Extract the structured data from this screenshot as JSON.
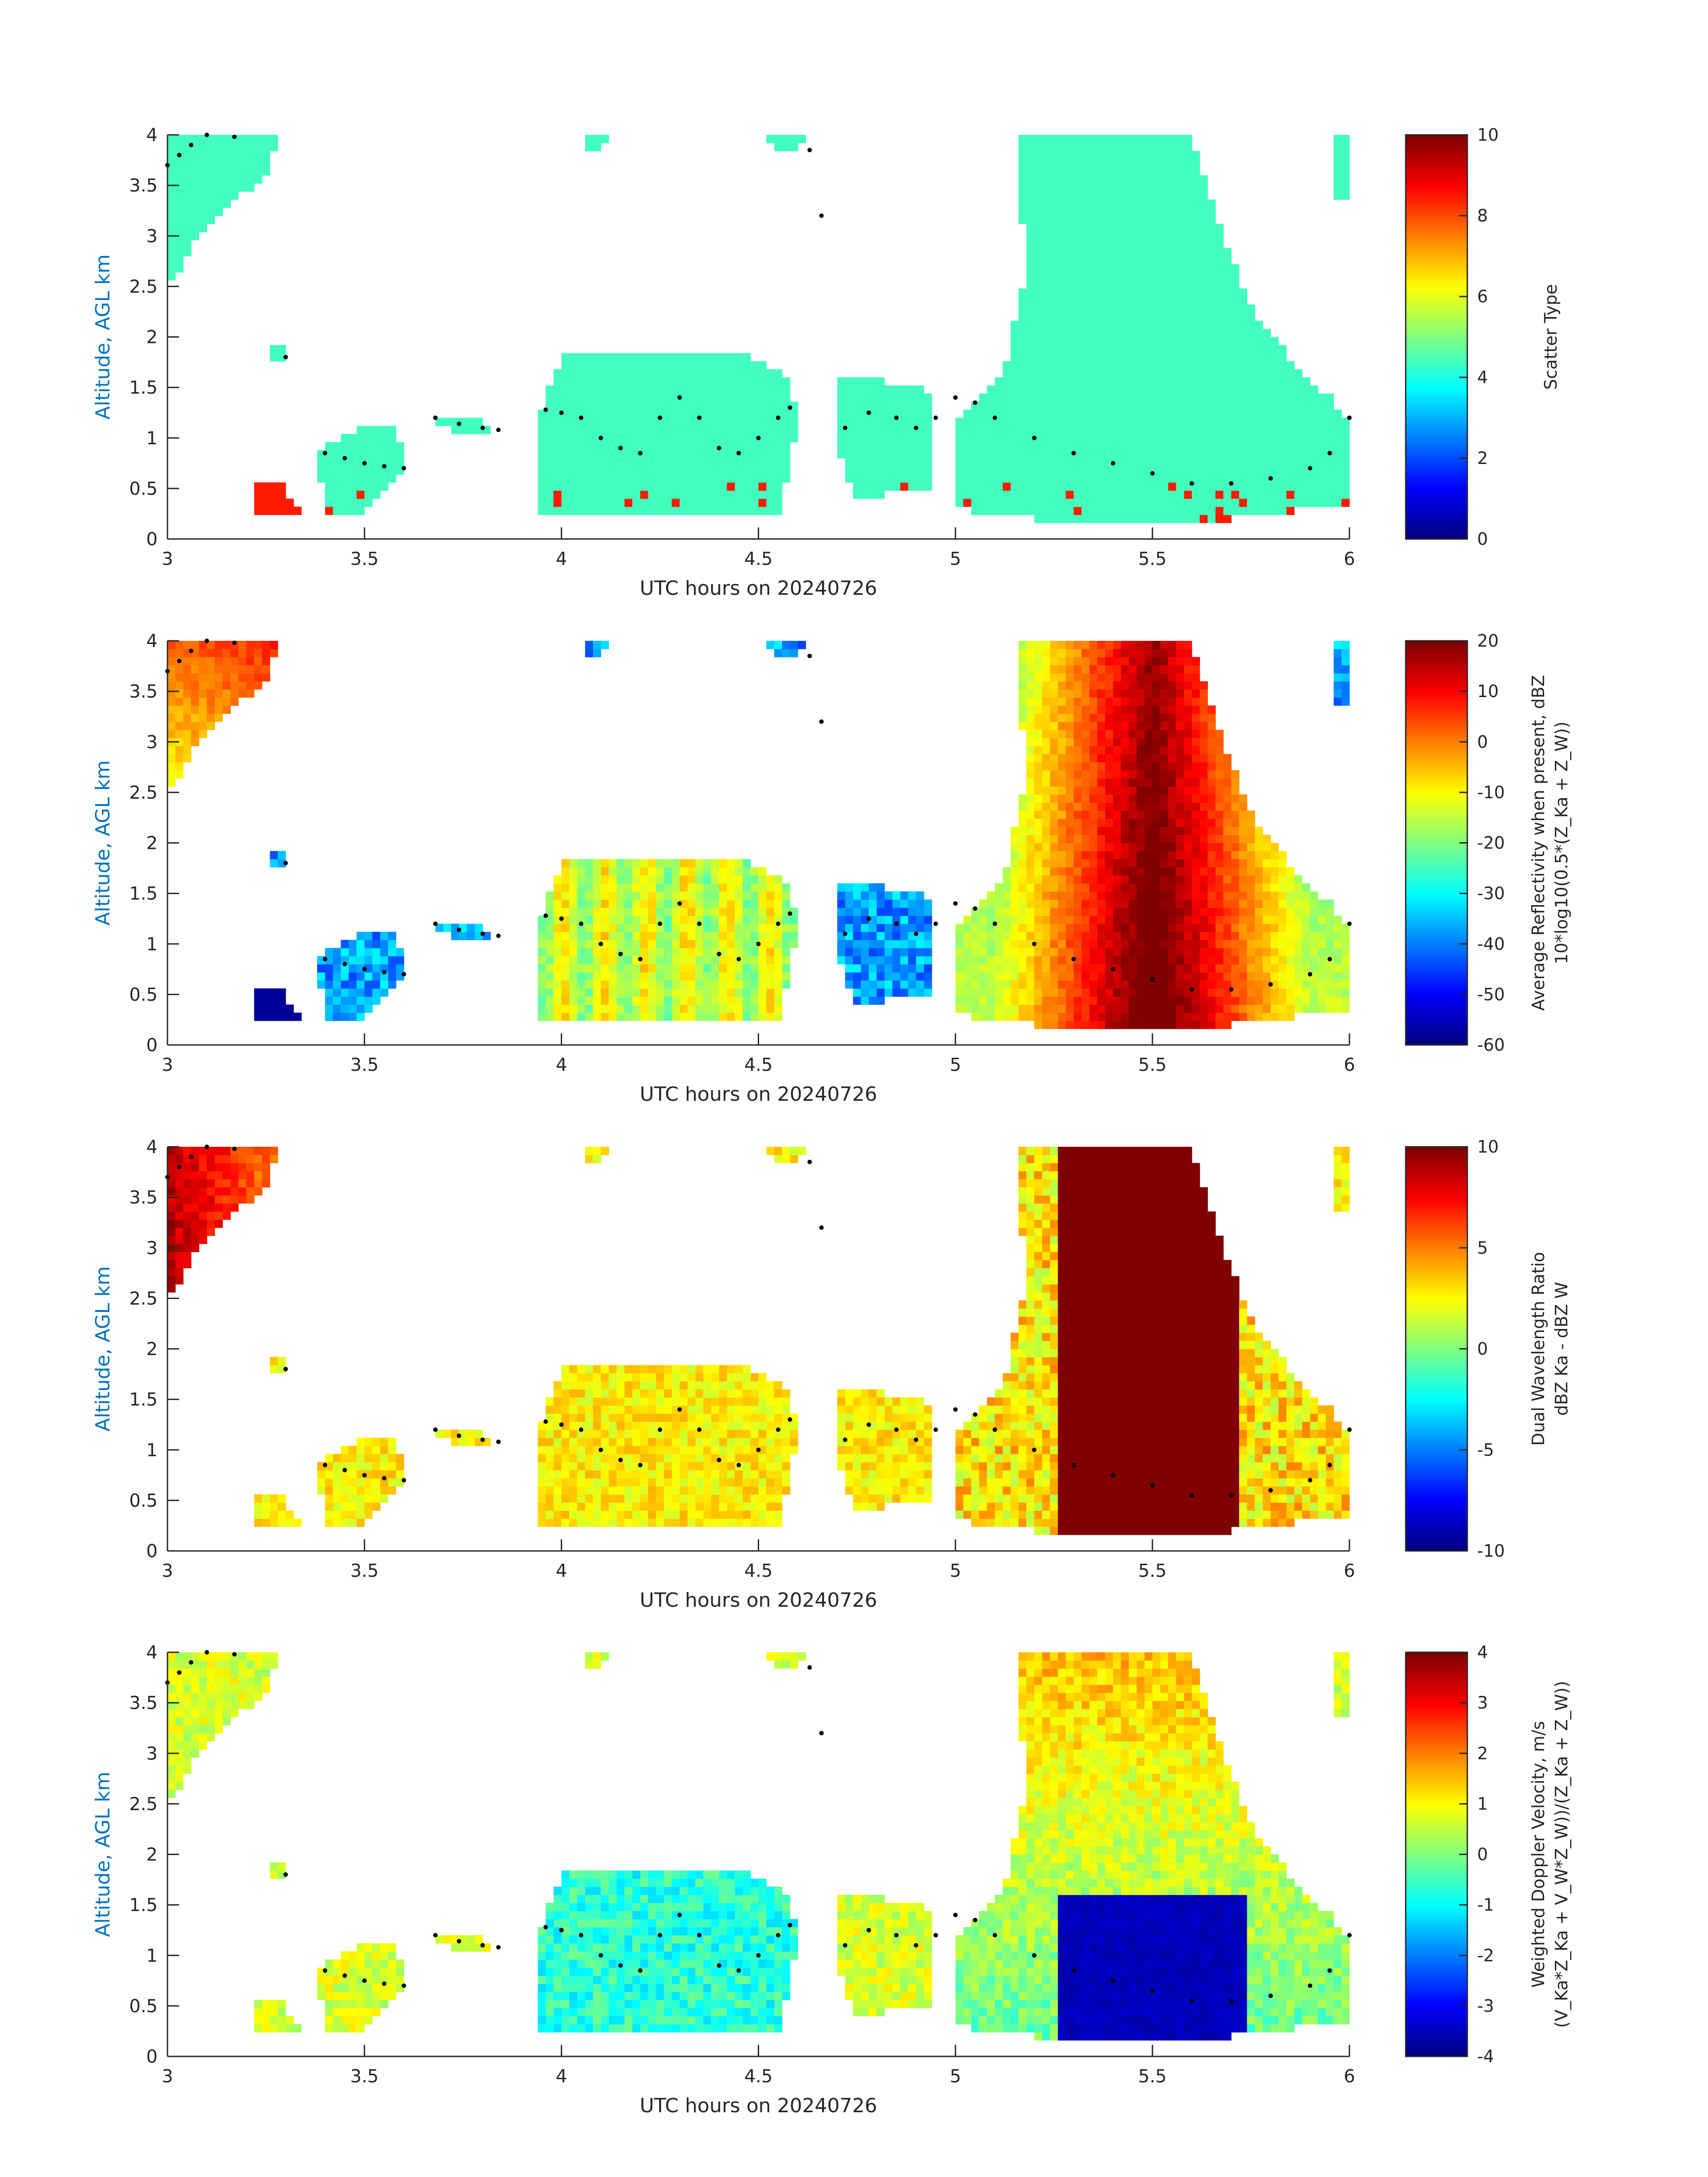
{
  "chart_data": [
    {
      "type": "heatmap",
      "xlabel": "UTC hours on 20240726",
      "ylabel": "Altitude, AGL km",
      "xlim": [
        3,
        6
      ],
      "ylim": [
        0,
        4
      ],
      "xticks": [
        "3",
        "3.5",
        "4",
        "4.5",
        "5",
        "5.5",
        "6"
      ],
      "yticks": [
        "0",
        "0.5",
        "1",
        "1.5",
        "2",
        "2.5",
        "3",
        "3.5",
        "4"
      ],
      "colorbar": {
        "label": "Scatter Type",
        "lim": [
          0,
          10
        ],
        "ticks": [
          "0",
          "2",
          "4",
          "6",
          "8",
          "10"
        ]
      },
      "mode": "scatter"
    },
    {
      "type": "heatmap",
      "xlabel": "UTC hours on 20240726",
      "ylabel": "Altitude, AGL km",
      "xlim": [
        3,
        6
      ],
      "ylim": [
        0,
        4
      ],
      "xticks": [
        "3",
        "3.5",
        "4",
        "4.5",
        "5",
        "5.5",
        "6"
      ],
      "yticks": [
        "0",
        "0.5",
        "1",
        "1.5",
        "2",
        "2.5",
        "3",
        "3.5",
        "4"
      ],
      "colorbar": {
        "label": "Average Reflectivity when present, dBZ",
        "label2": "10*log10(0.5*(Z_Ka + Z_W))",
        "lim": [
          -60,
          20
        ],
        "ticks": [
          "-60",
          "-50",
          "-40",
          "-30",
          "-20",
          "-10",
          "0",
          "10",
          "20"
        ]
      },
      "mode": "refl"
    },
    {
      "type": "heatmap",
      "xlabel": "UTC hours on 20240726",
      "ylabel": "Altitude, AGL km",
      "xlim": [
        3,
        6
      ],
      "ylim": [
        0,
        4
      ],
      "xticks": [
        "3",
        "3.5",
        "4",
        "4.5",
        "5",
        "5.5",
        "6"
      ],
      "yticks": [
        "0",
        "0.5",
        "1",
        "1.5",
        "2",
        "2.5",
        "3",
        "3.5",
        "4"
      ],
      "colorbar": {
        "label": "Dual Wavelength Ratio",
        "label2": "dBZ Ka - dBZ W",
        "lim": [
          -10,
          10
        ],
        "ticks": [
          "-10",
          "-5",
          "0",
          "5",
          "10"
        ]
      },
      "mode": "dwr"
    },
    {
      "type": "heatmap",
      "xlabel": "UTC hours on 20240726",
      "ylabel": "Altitude, AGL km",
      "xlim": [
        3,
        6
      ],
      "ylim": [
        0,
        4
      ],
      "xticks": [
        "3",
        "3.5",
        "4",
        "4.5",
        "5",
        "5.5",
        "6"
      ],
      "yticks": [
        "0",
        "0.5",
        "1",
        "1.5",
        "2",
        "2.5",
        "3",
        "3.5",
        "4"
      ],
      "colorbar": {
        "label": "Weighted Doppler Velocity, m/s",
        "label2": "(V_Ka*Z_Ka + V_W*Z_W))/(Z_Ka + Z_W))",
        "lim": [
          -4,
          4
        ],
        "ticks": [
          "-4",
          "-3",
          "-2",
          "-1",
          "0",
          "1",
          "2",
          "3",
          "4"
        ]
      },
      "mode": "vel"
    }
  ],
  "cloud_regions": [
    {
      "name": "early-high-cloud",
      "poly": [
        [
          3.0,
          4.0
        ],
        [
          3.28,
          4.0
        ],
        [
          3.25,
          3.6
        ],
        [
          3.1,
          3.1
        ],
        [
          3.0,
          2.5
        ]
      ]
    },
    {
      "name": "small-cell-3.3",
      "poly": [
        [
          3.26,
          1.95
        ],
        [
          3.31,
          1.95
        ],
        [
          3.31,
          1.78
        ],
        [
          3.26,
          1.78
        ]
      ]
    },
    {
      "name": "cell-3.5",
      "poly": [
        [
          3.38,
          0.9
        ],
        [
          3.5,
          1.1
        ],
        [
          3.58,
          1.15
        ],
        [
          3.6,
          0.7
        ],
        [
          3.5,
          0.25
        ],
        [
          3.4,
          0.25
        ]
      ]
    },
    {
      "name": "cell-3.75",
      "poly": [
        [
          3.67,
          1.22
        ],
        [
          3.78,
          1.2
        ],
        [
          3.84,
          1.05
        ],
        [
          3.72,
          1.05
        ]
      ]
    },
    {
      "name": "low-cell-3.25",
      "poly": [
        [
          3.22,
          0.6
        ],
        [
          3.28,
          0.6
        ],
        [
          3.34,
          0.25
        ],
        [
          3.22,
          0.25
        ]
      ]
    },
    {
      "name": "main-block-4.2",
      "poly": [
        [
          3.95,
          1.3
        ],
        [
          4.0,
          1.8
        ],
        [
          4.45,
          1.85
        ],
        [
          4.58,
          1.6
        ],
        [
          4.6,
          1.1
        ],
        [
          4.55,
          0.25
        ],
        [
          3.95,
          0.25
        ]
      ]
    },
    {
      "name": "top-4.1",
      "poly": [
        [
          4.05,
          4.0
        ],
        [
          4.12,
          4.0
        ],
        [
          4.1,
          3.85
        ],
        [
          4.07,
          3.85
        ]
      ]
    },
    {
      "name": "top-4.6",
      "poly": [
        [
          4.52,
          4.0
        ],
        [
          4.62,
          4.0
        ],
        [
          4.6,
          3.85
        ],
        [
          4.55,
          3.85
        ]
      ]
    },
    {
      "name": "mid-4.8",
      "poly": [
        [
          4.7,
          1.6
        ],
        [
          4.85,
          1.55
        ],
        [
          4.95,
          1.45
        ],
        [
          4.95,
          0.5
        ],
        [
          4.75,
          0.4
        ],
        [
          4.7,
          0.9
        ]
      ]
    },
    {
      "name": "wide-5.4",
      "poly": [
        [
          5.0,
          1.2
        ],
        [
          5.12,
          1.6
        ],
        [
          5.18,
          2.7
        ],
        [
          5.15,
          4.0
        ],
        [
          5.6,
          4.0
        ],
        [
          5.68,
          3.0
        ],
        [
          5.75,
          2.3
        ],
        [
          5.85,
          1.8
        ],
        [
          5.95,
          1.4
        ],
        [
          6.0,
          1.2
        ],
        [
          6.0,
          0.35
        ],
        [
          5.7,
          0.2
        ],
        [
          5.2,
          0.2
        ],
        [
          5.0,
          0.3
        ]
      ]
    },
    {
      "name": "edge-6",
      "poly": [
        [
          5.97,
          4.0
        ],
        [
          6.0,
          4.0
        ],
        [
          6.0,
          3.4
        ],
        [
          5.97,
          3.4
        ]
      ]
    }
  ],
  "dot_trace": [
    [
      3.0,
      3.7
    ],
    [
      3.03,
      3.8
    ],
    [
      3.06,
      3.9
    ],
    [
      3.1,
      4.0
    ],
    [
      3.17,
      3.98
    ],
    [
      3.3,
      1.8
    ],
    [
      3.4,
      0.85
    ],
    [
      3.45,
      0.8
    ],
    [
      3.5,
      0.75
    ],
    [
      3.55,
      0.72
    ],
    [
      3.6,
      0.7
    ],
    [
      3.68,
      1.2
    ],
    [
      3.74,
      1.14
    ],
    [
      3.8,
      1.1
    ],
    [
      3.84,
      1.08
    ],
    [
      3.96,
      1.28
    ],
    [
      4.0,
      1.25
    ],
    [
      4.05,
      1.2
    ],
    [
      4.1,
      1.0
    ],
    [
      4.15,
      0.9
    ],
    [
      4.2,
      0.85
    ],
    [
      4.25,
      1.2
    ],
    [
      4.3,
      1.4
    ],
    [
      4.35,
      1.2
    ],
    [
      4.4,
      0.9
    ],
    [
      4.45,
      0.85
    ],
    [
      4.5,
      1.0
    ],
    [
      4.55,
      1.2
    ],
    [
      4.58,
      1.3
    ],
    [
      4.63,
      3.85
    ],
    [
      4.66,
      3.2
    ],
    [
      4.72,
      1.1
    ],
    [
      4.78,
      1.25
    ],
    [
      4.85,
      1.2
    ],
    [
      4.9,
      1.1
    ],
    [
      4.95,
      1.2
    ],
    [
      5.0,
      1.4
    ],
    [
      5.05,
      1.35
    ],
    [
      5.1,
      1.2
    ],
    [
      5.2,
      1.0
    ],
    [
      5.3,
      0.85
    ],
    [
      5.4,
      0.75
    ],
    [
      5.5,
      0.65
    ],
    [
      5.6,
      0.55
    ],
    [
      5.7,
      0.55
    ],
    [
      5.8,
      0.6
    ],
    [
      5.9,
      0.7
    ],
    [
      5.95,
      0.85
    ],
    [
      6.0,
      1.2
    ]
  ]
}
